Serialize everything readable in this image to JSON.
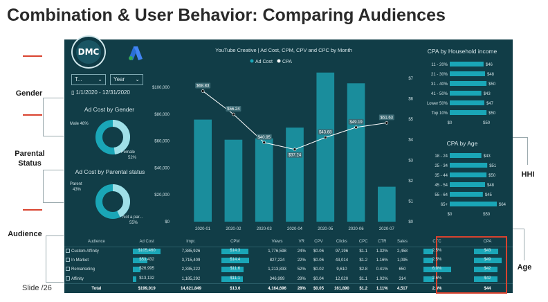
{
  "slide": {
    "title": "Combination & User Behavior: Comparing Audiences",
    "slide_number": "Slide  /26",
    "annotations": {
      "gender": "Gender",
      "parental_status": "Parental\nStatus",
      "audience": "Audience",
      "hhi": "HHI",
      "age": "Age"
    }
  },
  "dashboard": {
    "logo_text": "DMC",
    "filter_1": "T...",
    "filter_2": "Year",
    "date_range": "1/1/2020 - 12/31/2020",
    "gender_chart": {
      "title": "Ad Cost by Gender",
      "labels": [
        "Male 48%",
        "Female\n52%"
      ],
      "values": [
        48,
        52
      ]
    },
    "parental_chart": {
      "title": "Ad Cost by Parental status",
      "labels": [
        "Parent\n43%",
        "Not a par...\n55%"
      ],
      "values": [
        43,
        55
      ]
    },
    "colors": {
      "bg": "#113d47",
      "accent": "#1aa6b7",
      "accent_light": "#9fe0e8",
      "line": "#ffffff",
      "highlight": "#d9422e"
    }
  },
  "chart_data": [
    {
      "type": "bar",
      "title": "YouTube Creative | Ad Cost, CPM, CPV and CPC by Month",
      "legend": [
        "Ad Cost",
        "CPA"
      ],
      "categories": [
        "2020-01",
        "2020-02",
        "2020-03",
        "2020-04",
        "2020-05",
        "2020-06",
        "2020-07"
      ],
      "y_ticks_left": [
        "$100,000",
        "$80,000",
        "$60,000",
        "$40,000",
        "$20,000",
        "$0"
      ],
      "y_ticks_right": [
        "$7",
        "$6",
        "$5",
        "$4",
        "$3",
        "$2",
        "$1",
        "$0"
      ],
      "ylim": [
        0,
        115000
      ],
      "series": [
        {
          "name": "Ad Cost",
          "values": [
            76000,
            61000,
            62000,
            70000,
            111000,
            103000,
            26000
          ]
        },
        {
          "name": "CPA",
          "values": [
            68.83,
            56.24,
            40.95,
            37.24,
            43.68,
            49.19,
            51.63
          ],
          "labels": [
            "$68.83",
            "$56.24",
            "$40.95",
            "$37.24",
            "$43.68",
            "$49.19",
            "$51.63"
          ]
        }
      ]
    },
    {
      "type": "bar",
      "title": "CPA by Household income",
      "categories": [
        "11 - 20%",
        "21 - 30%",
        "31 - 40%",
        "41 - 50%",
        "Lower 50%",
        "Top 10%"
      ],
      "values": [
        46,
        48,
        50,
        43,
        47,
        50
      ],
      "labels": [
        "$46",
        "$48",
        "$50",
        "$43",
        "$47",
        "$50"
      ],
      "x_ticks": [
        "$0",
        "$50"
      ]
    },
    {
      "type": "bar",
      "title": "CPA by Age",
      "categories": [
        "18 - 24",
        "25 - 34",
        "35 - 44",
        "45 - 54",
        "55 - 64",
        "65+"
      ],
      "values": [
        43,
        51,
        50,
        48,
        45,
        64
      ],
      "labels": [
        "$43",
        "$51",
        "$50",
        "$48",
        "$45",
        "$64"
      ],
      "x_ticks": [
        "$0",
        "$50"
      ]
    },
    {
      "type": "table",
      "columns": [
        "Audience",
        "Ad Cost",
        "Impr.",
        "CPM",
        "Views",
        "VR",
        "CPV",
        "Clicks",
        "CPC",
        "CTR",
        "Sales",
        "CTC",
        "CPA"
      ],
      "rows": [
        [
          "Custom Affinity",
          "$105,460",
          "7,385,926",
          "$14.3",
          "1,776,598",
          "24%",
          "$0.06",
          "97,196",
          "$1.1",
          "1.32%",
          "2,458",
          "2.5%",
          "$43"
        ],
        [
          "In Market",
          "$53,432",
          "3,715,409",
          "$14.4",
          "827,224",
          "22%",
          "$0.06",
          "43,014",
          "$1.2",
          "1.16%",
          "1,095",
          "2.5%",
          "$49"
        ],
        [
          "Remarketing",
          "$26,995",
          "2,335,222",
          "$11.6",
          "1,213,833",
          "52%",
          "$0.02",
          "9,610",
          "$2.8",
          "0.41%",
          "650",
          "6.8%",
          "$42"
        ],
        [
          "Affinity",
          "$13,132",
          "1,185,292",
          "$11.1",
          "346,999",
          "29%",
          "$0.04",
          "12,020",
          "$1.1",
          "1.02%",
          "314",
          "2.6%",
          "$42"
        ]
      ],
      "total": [
        "Total",
        "$199,019",
        "14,621,849",
        "$13.6",
        "4,164,696",
        "28%",
        "$0.05",
        "161,890",
        "$1.2",
        "1.11%",
        "4,517",
        "2.8%",
        "$44"
      ],
      "bar_fractions": {
        "ad_cost": [
          1.0,
          0.51,
          0.26,
          0.12
        ],
        "cpm": [
          0.99,
          1.0,
          0.8,
          0.77
        ],
        "ctc": [
          0.37,
          0.37,
          1.0,
          0.38
        ],
        "cpa": [
          0.88,
          1.0,
          0.86,
          0.86
        ]
      }
    }
  ]
}
